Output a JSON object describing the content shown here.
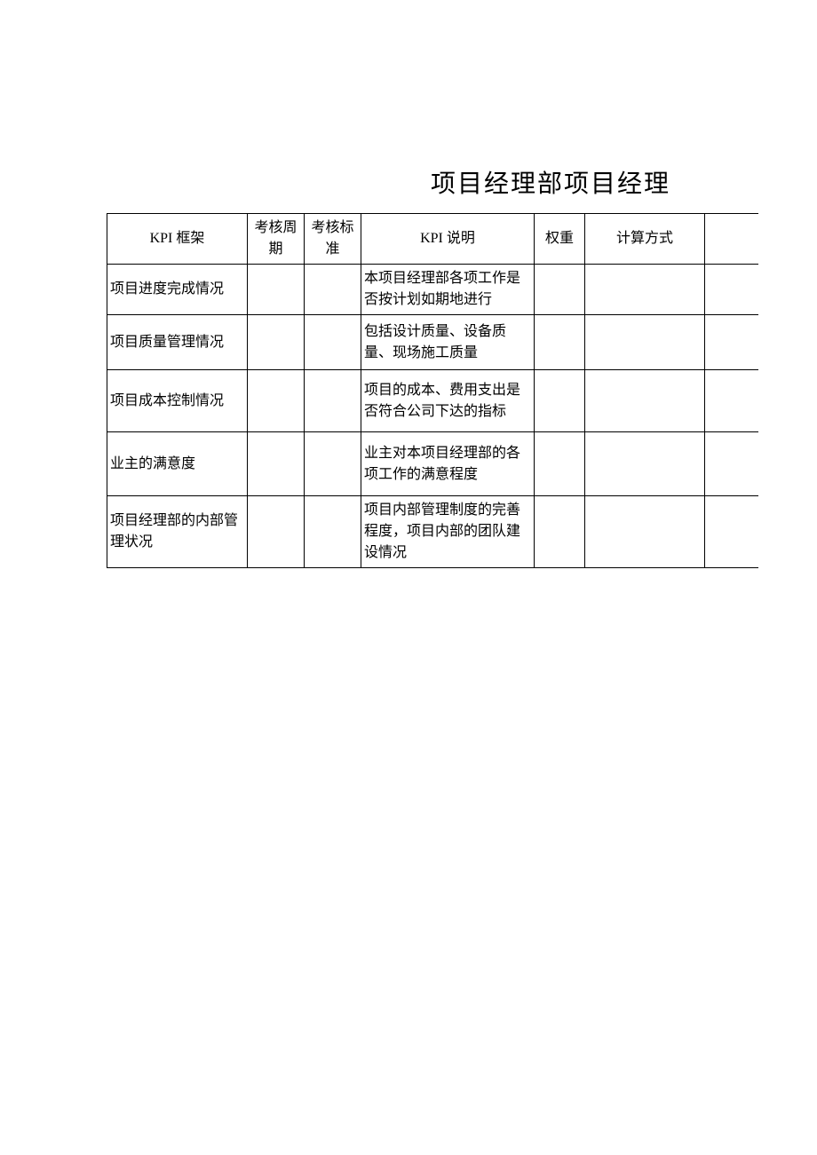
{
  "title": "项目经理部项目经理",
  "table": {
    "headers": {
      "kpi_frame": "KPI 框架",
      "cycle": "考核周期",
      "standard": "考核标准",
      "desc": "KPI 说明",
      "weight": "权重",
      "calc": "计算方式",
      "extra": ""
    },
    "rows": [
      {
        "kpi_frame": "项目进度完成情况",
        "cycle": "",
        "standard": "",
        "desc": "本项目经理部各项工作是否按计划如期地进行",
        "weight": "",
        "calc": "",
        "extra": ""
      },
      {
        "kpi_frame": "项目质量管理情况",
        "cycle": "",
        "standard": "",
        "desc": "包括设计质量、设备质量、现场施工质量",
        "weight": "",
        "calc": "",
        "extra": ""
      },
      {
        "kpi_frame": "项目成本控制情况",
        "cycle": "",
        "standard": "",
        "desc": "项目的成本、费用支出是否符合公司下达的指标",
        "weight": "",
        "calc": "",
        "extra": ""
      },
      {
        "kpi_frame": "业主的满意度",
        "cycle": "",
        "standard": "",
        "desc": "业主对本项目经理部的各项工作的满意程度",
        "weight": "",
        "calc": "",
        "extra": ""
      },
      {
        "kpi_frame": "项目经理部的内部管理状况",
        "cycle": "",
        "standard": "",
        "desc": "项目内部管理制度的完善程度，项目内部的团队建设情况",
        "weight": "",
        "calc": "",
        "extra": ""
      }
    ]
  },
  "colors": {
    "background": "#ffffff",
    "border": "#000000",
    "text": "#000000"
  }
}
